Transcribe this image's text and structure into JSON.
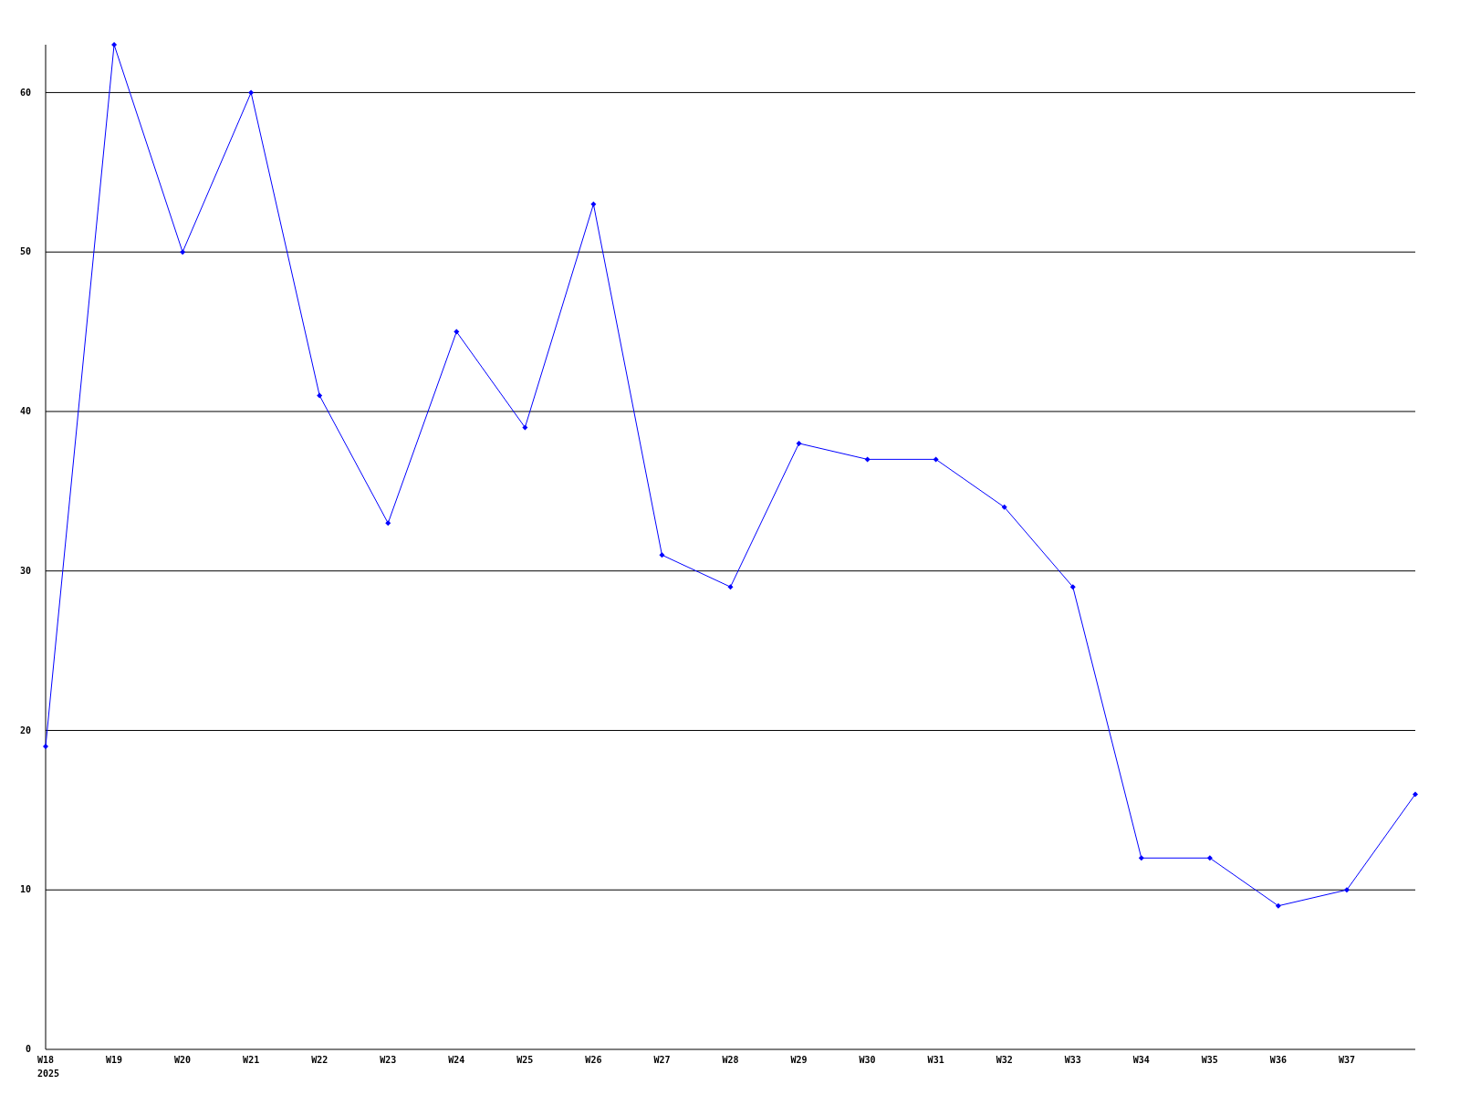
{
  "chart_data": {
    "type": "line",
    "categories": [
      "W18\n2025",
      "W19",
      "W20",
      "W21",
      "W22",
      "W23",
      "W24",
      "W25",
      "W26",
      "W27",
      "W28",
      "W29",
      "W30",
      "W31",
      "W32",
      "W33",
      "W34",
      "W35",
      "W36",
      "W37",
      null
    ],
    "series": [
      {
        "color": "#0000ff",
        "values": [
          19,
          63,
          50,
          60,
          41,
          33,
          45,
          39,
          53,
          31,
          29,
          38,
          37,
          37,
          34,
          29,
          12,
          12,
          9,
          10,
          16
        ]
      }
    ],
    "ylim": [
      0,
      63
    ],
    "yticks": [
      0,
      10,
      20,
      30,
      40,
      50,
      60
    ],
    "grid": "y",
    "marker": "diamond",
    "line_style": "solid"
  }
}
